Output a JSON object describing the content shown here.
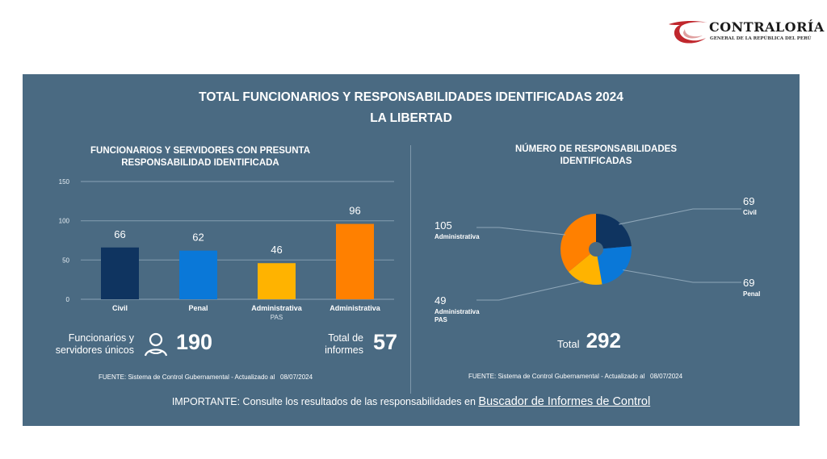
{
  "logo": {
    "title": "CONTRALORÍA",
    "subtitle": "GENERAL DE LA REPÚBLICA DEL PERÚ"
  },
  "header": {
    "title": "TOTAL FUNCIONARIOS Y RESPONSABILIDADES IDENTIFICADAS  2024",
    "region": "LA LIBERTAD"
  },
  "left": {
    "title_line1": "FUNCIONARIOS Y SERVIDORES CON PRESUNTA",
    "title_line2": "RESPONSABILIDAD IDENTIFICADA",
    "unique_label_line1": "Funcionarios y",
    "unique_label_line2": "servidores únicos",
    "unique_icon": "person-icon",
    "unique_value": "190",
    "reports_label_line1": "Total de",
    "reports_label_line2": "informes",
    "reports_value": "57",
    "source": "FUENTE: Sistema de Control Gubernamental - Actualizado al",
    "date": "08/07/2024"
  },
  "right": {
    "title_line1": "NÚMERO DE RESPONSABILIDADES",
    "title_line2": "IDENTIFICADAS",
    "total_label": "Total",
    "total_value": "292",
    "source": "FUENTE: Sistema de Control Gubernamental - Actualizado al",
    "date": "08/07/2024"
  },
  "footer": {
    "important_text": "IMPORTANTE: Consulte los resultados de las responsabilidades en ",
    "link_text": "Buscador de Informes de Control"
  },
  "chart_data": [
    {
      "type": "bar",
      "title": "FUNCIONARIOS Y SERVIDORES CON PRESUNTA RESPONSABILIDAD IDENTIFICADA",
      "categories": [
        [
          "Civil"
        ],
        [
          "Penal"
        ],
        [
          "Administrativa",
          "PAS"
        ],
        [
          "Administrativa"
        ]
      ],
      "values": [
        66,
        62,
        46,
        96
      ],
      "colors": [
        "#0f3460",
        "#0a78d8",
        "#ffb300",
        "#ff8000"
      ],
      "yticks": [
        0,
        50,
        100,
        150
      ],
      "ylim": [
        0,
        150
      ],
      "grid": true,
      "xlabel": "",
      "ylabel": ""
    },
    {
      "type": "pie",
      "title": "NÚMERO DE RESPONSABILIDADES IDENTIFICADAS",
      "slices": [
        {
          "label": [
            "Civil"
          ],
          "value": 69,
          "color": "#0f3460"
        },
        {
          "label": [
            "Penal"
          ],
          "value": 69,
          "color": "#0a78d8"
        },
        {
          "label": [
            "Administrativa",
            "PAS"
          ],
          "value": 49,
          "color": "#ffb300"
        },
        {
          "label": [
            "Administrativa"
          ],
          "value": 105,
          "color": "#ff8000"
        }
      ],
      "total": 292,
      "donut": true
    }
  ]
}
